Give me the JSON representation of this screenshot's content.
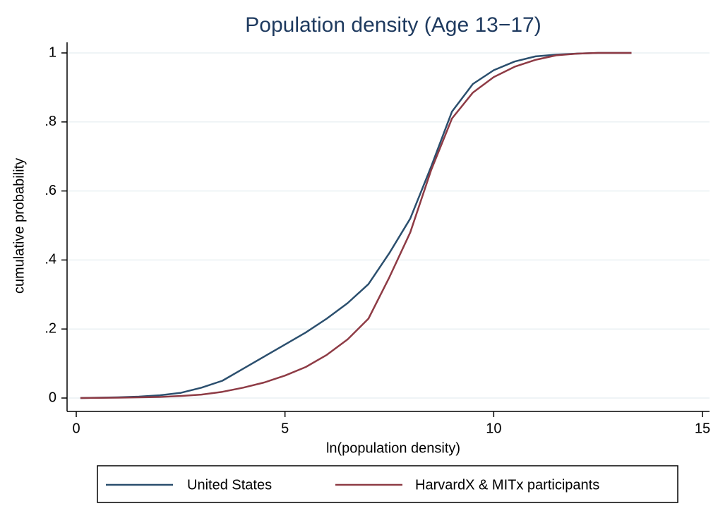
{
  "chart_data": {
    "type": "line",
    "title": "Population density (Age 13−17)",
    "x_label": "ln(population density)",
    "y_label": "cumulative probability",
    "x": [
      0.1,
      1,
      1.5,
      2,
      2.5,
      3,
      3.5,
      4,
      4.5,
      5,
      5.5,
      6,
      6.5,
      7,
      7.5,
      8,
      8.5,
      9,
      9.5,
      10,
      10.5,
      11,
      11.5,
      12,
      12.5,
      13.3
    ],
    "series": [
      {
        "name": "United States",
        "color": "#2b4f6e",
        "values": [
          0,
          0.002,
          0.004,
          0.008,
          0.015,
          0.03,
          0.05,
          0.085,
          0.12,
          0.155,
          0.19,
          0.23,
          0.275,
          0.33,
          0.42,
          0.52,
          0.67,
          0.83,
          0.91,
          0.95,
          0.975,
          0.99,
          0.995,
          0.998,
          1,
          1
        ]
      },
      {
        "name": "HarvardX & MITx participants",
        "color": "#8e3b45",
        "values": [
          0,
          0.001,
          0.002,
          0.003,
          0.006,
          0.01,
          0.018,
          0.03,
          0.045,
          0.065,
          0.09,
          0.125,
          0.17,
          0.23,
          0.35,
          0.48,
          0.66,
          0.81,
          0.885,
          0.93,
          0.96,
          0.98,
          0.993,
          0.998,
          1,
          1
        ]
      }
    ],
    "xlim": [
      0,
      15
    ],
    "ylim": [
      0,
      1
    ],
    "xticks": [
      0,
      5,
      10,
      15
    ],
    "yticks": [
      0,
      {
        "value": 0.2,
        "label": ".2"
      },
      {
        "value": 0.4,
        "label": ".4"
      },
      {
        "value": 0.6,
        "label": ".6"
      },
      {
        "value": 0.8,
        "label": ".8"
      },
      1
    ],
    "grid": true,
    "legend": "bottom"
  }
}
